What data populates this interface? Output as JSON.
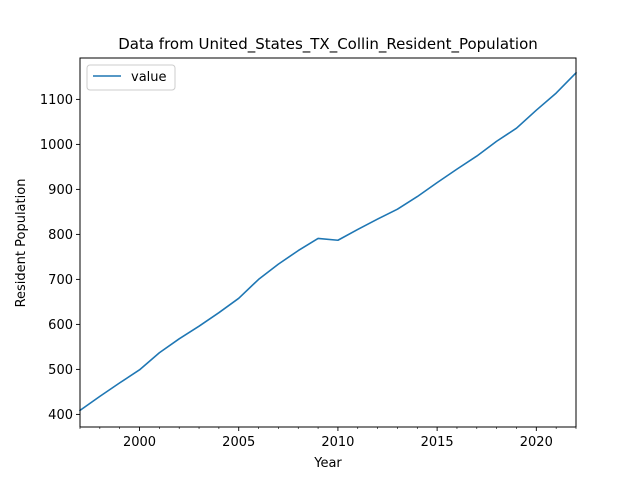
{
  "chart_data": {
    "type": "line",
    "title": "Data from United_States_TX_Collin_Resident_Population",
    "xlabel": "Year",
    "ylabel": "Resident Population",
    "xlim": [
      1997,
      2022
    ],
    "ylim": [
      372,
      1192
    ],
    "x_ticks": [
      2000,
      2005,
      2010,
      2015,
      2020
    ],
    "y_ticks": [
      400,
      500,
      600,
      700,
      800,
      900,
      1000,
      1100
    ],
    "x_tick_labels": [
      "2000",
      "2005",
      "2010",
      "2015",
      "2020"
    ],
    "y_tick_labels": [
      "400",
      "500",
      "600",
      "700",
      "800",
      "900",
      "1000",
      "1100"
    ],
    "grid": false,
    "legend_position": "upper-left",
    "series": [
      {
        "name": "value",
        "color": "#1f77b4",
        "x": [
          1997,
          1998,
          1999,
          2000,
          2001,
          2002,
          2003,
          2004,
          2005,
          2006,
          2007,
          2008,
          2009,
          2010,
          2011,
          2012,
          2013,
          2014,
          2015,
          2016,
          2017,
          2018,
          2019,
          2020,
          2021,
          2022
        ],
        "y": [
          409,
          440,
          470,
          499,
          537,
          568,
          596,
          626,
          658,
          700,
          734,
          764,
          791,
          787,
          811,
          834,
          856,
          884,
          915,
          945,
          974,
          1007,
          1036,
          1076,
          1114,
          1159
        ]
      }
    ]
  }
}
